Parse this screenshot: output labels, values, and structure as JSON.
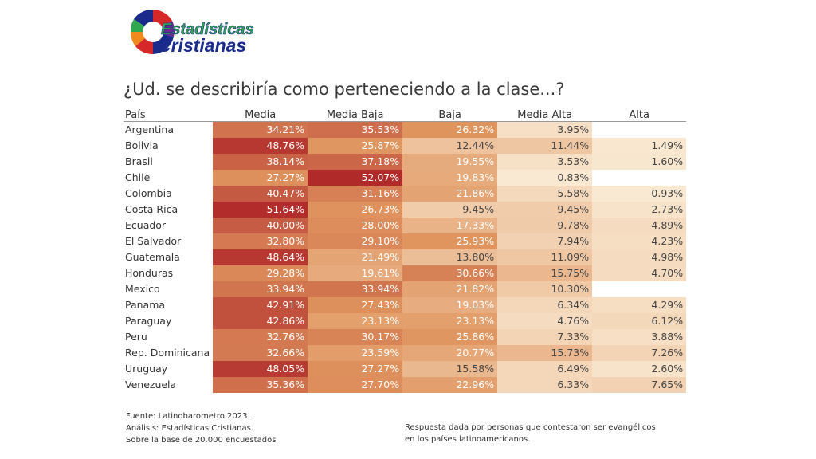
{
  "logo": {
    "line1": "Estadísticas",
    "line2": "Cristianas"
  },
  "title": "¿Ud. se describiría como perteneciendo a la clase...?",
  "chart_data": {
    "type": "heatmap",
    "title": "¿Ud. se describiría como perteneciendo a la clase...?",
    "row_header": "País",
    "columns": [
      "Media",
      "Media Baja",
      "Baja",
      "Media Alta",
      "Alta"
    ],
    "rows": [
      {
        "country": "Argentina",
        "values": [
          "34.21%",
          "35.53%",
          "26.32%",
          "3.95%",
          ""
        ]
      },
      {
        "country": "Bolivia",
        "values": [
          "48.76%",
          "25.87%",
          "12.44%",
          "11.44%",
          "1.49%"
        ]
      },
      {
        "country": "Brasil",
        "values": [
          "38.14%",
          "37.18%",
          "19.55%",
          "3.53%",
          "1.60%"
        ]
      },
      {
        "country": "Chile",
        "values": [
          "27.27%",
          "52.07%",
          "19.83%",
          "0.83%",
          ""
        ]
      },
      {
        "country": "Colombia",
        "values": [
          "40.47%",
          "31.16%",
          "21.86%",
          "5.58%",
          "0.93%"
        ]
      },
      {
        "country": "Costa Rica",
        "values": [
          "51.64%",
          "26.73%",
          "9.45%",
          "9.45%",
          "2.73%"
        ]
      },
      {
        "country": "Ecuador",
        "values": [
          "40.00%",
          "28.00%",
          "17.33%",
          "9.78%",
          "4.89%"
        ]
      },
      {
        "country": "El Salvador",
        "values": [
          "32.80%",
          "29.10%",
          "25.93%",
          "7.94%",
          "4.23%"
        ]
      },
      {
        "country": "Guatemala",
        "values": [
          "48.64%",
          "21.49%",
          "13.80%",
          "11.09%",
          "4.98%"
        ]
      },
      {
        "country": "Honduras",
        "values": [
          "29.28%",
          "19.61%",
          "30.66%",
          "15.75%",
          "4.70%"
        ]
      },
      {
        "country": "Mexico",
        "values": [
          "33.94%",
          "33.94%",
          "21.82%",
          "10.30%",
          ""
        ]
      },
      {
        "country": "Panama",
        "values": [
          "42.91%",
          "27.43%",
          "19.03%",
          "6.34%",
          "4.29%"
        ]
      },
      {
        "country": "Paraguay",
        "values": [
          "42.86%",
          "23.13%",
          "23.13%",
          "4.76%",
          "6.12%"
        ]
      },
      {
        "country": "Peru",
        "values": [
          "32.76%",
          "30.17%",
          "25.86%",
          "7.33%",
          "3.88%"
        ]
      },
      {
        "country": "Rep. Dominicana",
        "values": [
          "32.66%",
          "23.59%",
          "20.77%",
          "15.73%",
          "7.26%"
        ]
      },
      {
        "country": "Uruguay",
        "values": [
          "48.05%",
          "27.27%",
          "15.58%",
          "6.49%",
          "2.60%"
        ]
      },
      {
        "country": "Venezuela",
        "values": [
          "35.36%",
          "27.70%",
          "22.96%",
          "6.33%",
          "7.65%"
        ]
      }
    ],
    "color_scale": {
      "low": "#faecd6",
      "mid": "#e0955f",
      "high": "#b02a2a",
      "min_value": 0,
      "max_value": 52.07
    }
  },
  "footer": {
    "source": "Fuente: Latinobarometro 2023.",
    "analysis": "Análisis: Estadísticas Cristianas.",
    "base": "Sobre la base de 20.000 encuestados",
    "note": "Respuesta dada por personas que contestaron ser evangélicos en los países latinoamericanos."
  },
  "colors": {
    "logo_blue": "#1a2b8c",
    "logo_green": "#2fa84f",
    "logo_orange": "#f08a1c",
    "logo_red": "#d62828",
    "logo_purple": "#6a2c91"
  }
}
